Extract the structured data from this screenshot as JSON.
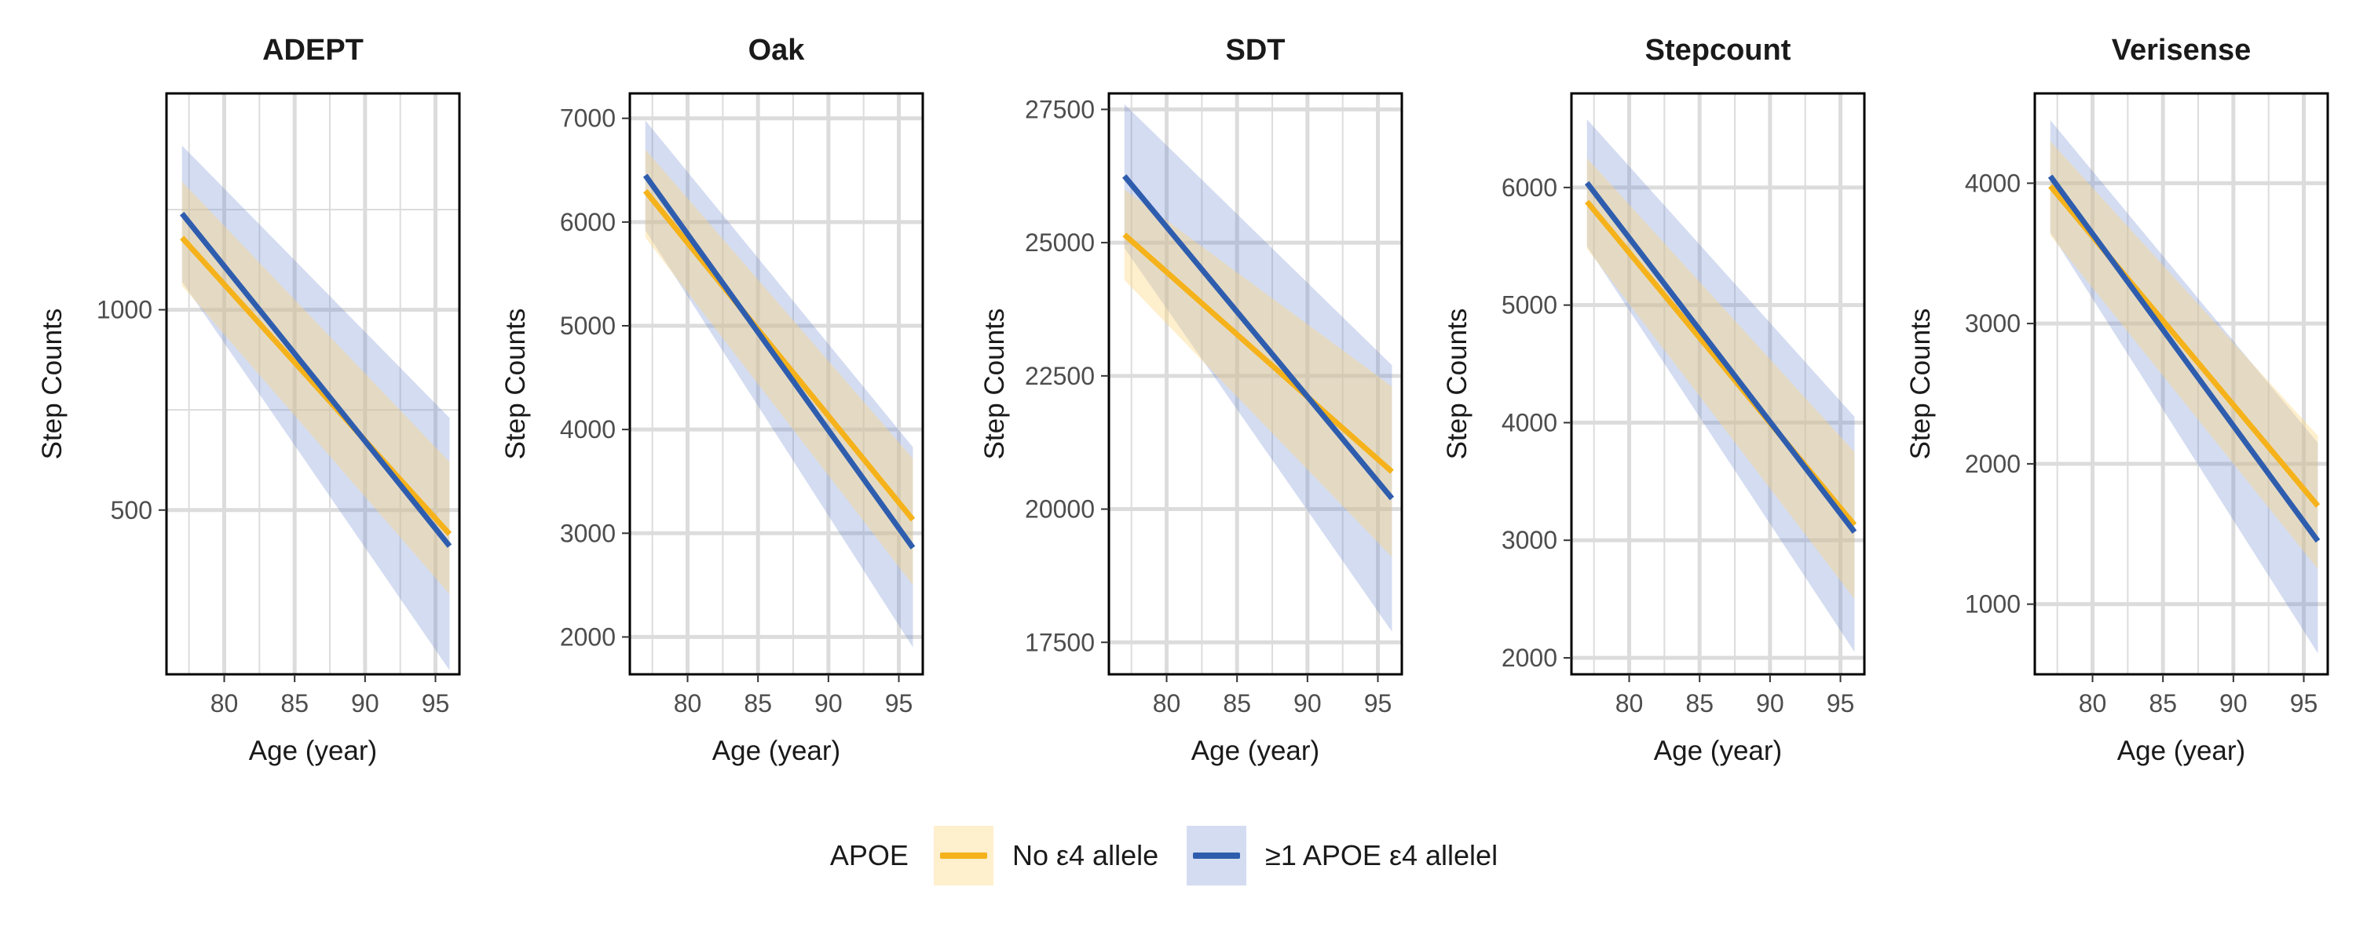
{
  "colors": {
    "no_e4": "#F5B21A",
    "no_e4_band": "rgba(253,216,130,0.40)",
    "e4": "#2F5DAE",
    "e4_band": "rgba(112,138,210,0.30)",
    "grid": "#dcdcdc",
    "frame": "#000000",
    "text": "#1a1a1a",
    "tick_text": "#4d4d4d"
  },
  "legend": {
    "title": "APOE",
    "items": [
      {
        "key": "no_e4",
        "label": "No ε4 allele"
      },
      {
        "key": "e4",
        "label": "≥1 APOE ε4 allelel"
      }
    ]
  },
  "chart_data": [
    {
      "type": "line",
      "title": "ADEPT",
      "xlabel": "Age (year)",
      "ylabel": "Step Counts",
      "xlim": [
        75.9,
        96.7
      ],
      "ylim": [
        90,
        1540
      ],
      "xticks": [
        80,
        85,
        90,
        95
      ],
      "yticks": [
        500,
        1000
      ],
      "xgrid_minor": [
        77.5,
        82.5,
        87.5,
        92.5
      ],
      "ygrid_minor": [
        750,
        1250
      ],
      "grid": true,
      "series": [
        {
          "key": "no_e4",
          "name": "No ε4 allele",
          "x": [
            77,
            96
          ],
          "y": [
            1180,
            440
          ],
          "lower": [
            1060,
            290
          ],
          "upper": [
            1320,
            620
          ]
        },
        {
          "key": "e4",
          "name": "≥1 APOE ε4 allelel",
          "x": [
            77,
            96
          ],
          "y": [
            1240,
            410
          ],
          "lower": [
            1070,
            100
          ],
          "upper": [
            1410,
            730
          ]
        }
      ]
    },
    {
      "type": "line",
      "title": "Oak",
      "xlabel": "Age (year)",
      "ylabel": "Step Counts",
      "xlim": [
        75.9,
        96.7
      ],
      "ylim": [
        1640,
        7240
      ],
      "xticks": [
        80,
        85,
        90,
        95
      ],
      "yticks": [
        2000,
        3000,
        4000,
        5000,
        6000,
        7000
      ],
      "xgrid_minor": [
        77.5,
        82.5,
        87.5,
        92.5
      ],
      "ygrid_minor": [],
      "grid": true,
      "series": [
        {
          "key": "no_e4",
          "name": "No ε4 allele",
          "x": [
            77,
            96
          ],
          "y": [
            6300,
            3130
          ],
          "lower": [
            5850,
            2500
          ],
          "upper": [
            6700,
            3720
          ]
        },
        {
          "key": "e4",
          "name": "≥1 APOE ε4 allelel",
          "x": [
            77,
            96
          ],
          "y": [
            6450,
            2860
          ],
          "lower": [
            5920,
            1900
          ],
          "upper": [
            6980,
            3830
          ]
        }
      ]
    },
    {
      "type": "line",
      "title": "SDT",
      "xlabel": "Age (year)",
      "ylabel": "Step Counts",
      "xlim": [
        75.9,
        96.7
      ],
      "ylim": [
        16900,
        27800
      ],
      "xticks": [
        80,
        85,
        90,
        95
      ],
      "yticks": [
        17500,
        20000,
        22500,
        25000,
        27500
      ],
      "xgrid_minor": [
        77.5,
        82.5,
        87.5,
        92.5
      ],
      "ygrid_minor": [],
      "grid": true,
      "series": [
        {
          "key": "no_e4",
          "name": "No ε4 allele",
          "x": [
            77,
            96
          ],
          "y": [
            25150,
            20700
          ],
          "lower": [
            24300,
            19100
          ],
          "upper": [
            26000,
            22300
          ]
        },
        {
          "key": "e4",
          "name": "≥1 APOE ε4 allelel",
          "x": [
            77,
            96
          ],
          "y": [
            26250,
            20200
          ],
          "lower": [
            24900,
            17700
          ],
          "upper": [
            27600,
            22700
          ]
        }
      ]
    },
    {
      "type": "line",
      "title": "Stepcount",
      "xlabel": "Age (year)",
      "ylabel": "Step Counts",
      "xlim": [
        75.9,
        96.7
      ],
      "ylim": [
        1860,
        6800
      ],
      "xticks": [
        80,
        85,
        90,
        95
      ],
      "yticks": [
        2000,
        3000,
        4000,
        5000,
        6000
      ],
      "xgrid_minor": [
        77.5,
        82.5,
        87.5,
        92.5
      ],
      "ygrid_minor": [],
      "grid": true,
      "series": [
        {
          "key": "no_e4",
          "name": "No ε4 allele",
          "x": [
            77,
            96
          ],
          "y": [
            5880,
            3130
          ],
          "lower": [
            5480,
            2500
          ],
          "upper": [
            6250,
            3750
          ]
        },
        {
          "key": "e4",
          "name": "≥1 APOE ε4 allelel",
          "x": [
            77,
            96
          ],
          "y": [
            6040,
            3070
          ],
          "lower": [
            5500,
            2050
          ],
          "upper": [
            6580,
            4050
          ]
        }
      ]
    },
    {
      "type": "line",
      "title": "Verisense",
      "xlabel": "Age (year)",
      "ylabel": "Step Counts",
      "xlim": [
        75.9,
        96.7
      ],
      "ylim": [
        500,
        4640
      ],
      "xticks": [
        80,
        85,
        90,
        95
      ],
      "yticks": [
        1000,
        2000,
        3000,
        4000
      ],
      "xgrid_minor": [
        77.5,
        82.5,
        87.5,
        92.5
      ],
      "ygrid_minor": [],
      "grid": true,
      "series": [
        {
          "key": "no_e4",
          "name": "No ε4 allele",
          "x": [
            77,
            96
          ],
          "y": [
            3980,
            1700
          ],
          "lower": [
            3630,
            1250
          ],
          "upper": [
            4300,
            2200
          ]
        },
        {
          "key": "e4",
          "name": "≥1 APOE ε4 allelel",
          "x": [
            77,
            96
          ],
          "y": [
            4050,
            1450
          ],
          "lower": [
            3650,
            650
          ],
          "upper": [
            4450,
            2150
          ]
        }
      ]
    }
  ]
}
